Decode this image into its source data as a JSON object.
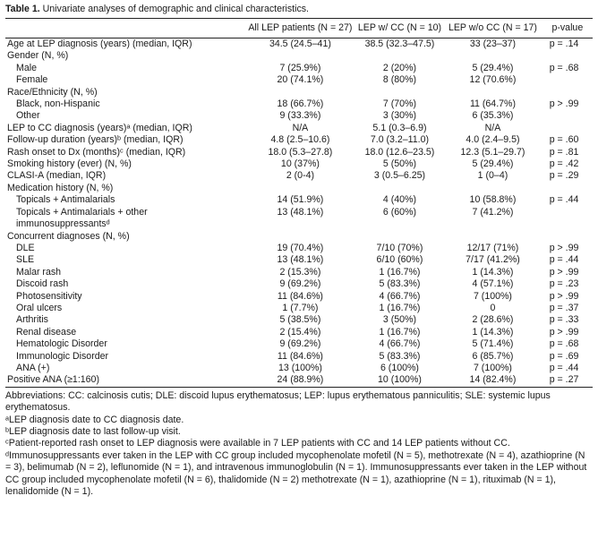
{
  "caption": {
    "label": "Table 1.",
    "text": "Univariate analyses of demographic and clinical characteristics."
  },
  "header": {
    "col0": "",
    "col1": "All LEP patients (N = 27)",
    "col2": "LEP w/ CC (N = 10)",
    "col3": "LEP w/o CC (N = 17)",
    "col4": "p-value"
  },
  "rows": [
    {
      "label": "Age at LEP diagnosis (years) (median, IQR)",
      "all": "34.5 (24.5–41)",
      "cc": "38.5 (32.3–47.5)",
      "wocc": "33 (23–37)",
      "p": "p = .14"
    },
    {
      "label": "Gender (N, %)",
      "all": "",
      "cc": "",
      "wocc": "",
      "p": ""
    },
    {
      "label": "Male",
      "all": "7 (25.9%)",
      "cc": "2 (20%)",
      "wocc": "5 (29.4%)",
      "p": "p = .68"
    },
    {
      "label": "Female",
      "all": "20 (74.1%)",
      "cc": "8 (80%)",
      "wocc": "12 (70.6%)",
      "p": ""
    },
    {
      "label": "Race/Ethnicity (N, %)",
      "all": "",
      "cc": "",
      "wocc": "",
      "p": ""
    },
    {
      "label": "Black, non-Hispanic",
      "all": "18 (66.7%)",
      "cc": "7 (70%)",
      "wocc": "11 (64.7%)",
      "p": "p > .99"
    },
    {
      "label": "Other",
      "all": "9 (33.3%)",
      "cc": "3 (30%)",
      "wocc": "6 (35.3%)",
      "p": ""
    },
    {
      "label": "LEP to CC diagnosis (years)ᵃ (median, IQR)",
      "all": "N/A",
      "cc": "5.1 (0.3–6.9)",
      "wocc": "N/A",
      "p": ""
    },
    {
      "label": "Follow-up duration (years)ᵇ (median, IQR)",
      "all": "4.8 (2.5–10.6)",
      "cc": "7.0 (3.2–11.0)",
      "wocc": "4.0 (2.4–9.5)",
      "p": "p = .60"
    },
    {
      "label": "Rash onset to Dx (months)ᶜ (median, IQR)",
      "all": "18.0 (5.3–27.8)",
      "cc": "18.0 (12.6–23.5)",
      "wocc": "12.3 (5.1–29.7)",
      "p": "p = .81"
    },
    {
      "label": "Smoking history (ever) (N, %)",
      "all": "10 (37%)",
      "cc": "5 (50%)",
      "wocc": "5 (29.4%)",
      "p": "p = .42"
    },
    {
      "label": "CLASI-A (median, IQR)",
      "all": "2 (0-4)",
      "cc": "3 (0.5–6.25)",
      "wocc": "1 (0–4)",
      "p": "p = .29"
    },
    {
      "label": "Medication history (N, %)",
      "all": "",
      "cc": "",
      "wocc": "",
      "p": ""
    },
    {
      "label": "Topicals + Antimalarials",
      "all": "14 (51.9%)",
      "cc": "4 (40%)",
      "wocc": "10 (58.8%)",
      "p": "p = .44"
    },
    {
      "label": "Topicals + Antimalarials + other immunosuppressantsᵈ",
      "all": "13 (48.1%)",
      "cc": "6 (60%)",
      "wocc": "7 (41.2%)",
      "p": ""
    },
    {
      "label": "Concurrent diagnoses (N, %)",
      "all": "",
      "cc": "",
      "wocc": "",
      "p": ""
    },
    {
      "label": "DLE",
      "all": "19 (70.4%)",
      "cc": "7/10 (70%)",
      "wocc": "12/17 (71%)",
      "p": "p > .99"
    },
    {
      "label": "SLE",
      "all": "13 (48.1%)",
      "cc": "6/10 (60%)",
      "wocc": "7/17 (41.2%)",
      "p": "p = .44"
    },
    {
      "label": "Malar rash",
      "all": "2 (15.3%)",
      "cc": "1 (16.7%)",
      "wocc": "1 (14.3%)",
      "p": "p > .99"
    },
    {
      "label": "Discoid rash",
      "all": "9 (69.2%)",
      "cc": "5 (83.3%)",
      "wocc": "4 (57.1%)",
      "p": "p = .23"
    },
    {
      "label": "Photosensitivity",
      "all": "11 (84.6%)",
      "cc": "4 (66.7%)",
      "wocc": "7 (100%)",
      "p": "p > .99"
    },
    {
      "label": "Oral ulcers",
      "all": "1 (7.7%)",
      "cc": "1 (16.7%)",
      "wocc": "0",
      "p": "p = .37"
    },
    {
      "label": "Arthritis",
      "all": "5 (38.5%)",
      "cc": "3 (50%)",
      "wocc": "2 (28.6%)",
      "p": "p = .33"
    },
    {
      "label": "Renal disease",
      "all": "2 (15.4%)",
      "cc": "1 (16.7%)",
      "wocc": "1 (14.3%)",
      "p": "p > .99"
    },
    {
      "label": "Hematologic Disorder",
      "all": "9 (69.2%)",
      "cc": "4 (66.7%)",
      "wocc": "5 (71.4%)",
      "p": "p = .68"
    },
    {
      "label": "Immunologic Disorder",
      "all": "11 (84.6%)",
      "cc": "5 (83.3%)",
      "wocc": "6 (85.7%)",
      "p": "p = .69"
    },
    {
      "label": "ANA (+)",
      "all": "13 (100%)",
      "cc": "6 (100%)",
      "wocc": "7 (100%)",
      "p": "p = .44"
    },
    {
      "label": "Positive ANA (≥1:160)",
      "all": "24 (88.9%)",
      "cc": "10 (100%)",
      "wocc": "14 (82.4%)",
      "p": "p = .27"
    }
  ],
  "footnotes": {
    "abbrev": "Abbreviations: CC: calcinosis cutis; DLE: discoid lupus erythematosus; LEP: lupus erythematous panniculitis; SLE: systemic lupus erythematosus.",
    "a": "ᵃLEP diagnosis date to CC diagnosis date.",
    "b": "ᵇLEP diagnosis date to last follow-up visit.",
    "c": "ᶜPatient-reported rash onset to LEP diagnosis were available in 7 LEP patients with CC and 14 LEP patients without CC.",
    "d": "ᵈImmunosuppressants ever taken in the LEP with CC group included mycophenolate mofetil (N = 5), methotrexate (N = 4), azathioprine (N = 3), belimumab (N = 2), leflunomide (N = 1), and intravenous immunoglobulin (N = 1). Immunosuppressants ever taken in the LEP without CC group included mycophenolate mofetil (N = 6), thalidomide (N = 2) methotrexate (N = 1), azathioprine (N = 1), rituximab (N = 1), lenalidomide (N = 1)."
  }
}
